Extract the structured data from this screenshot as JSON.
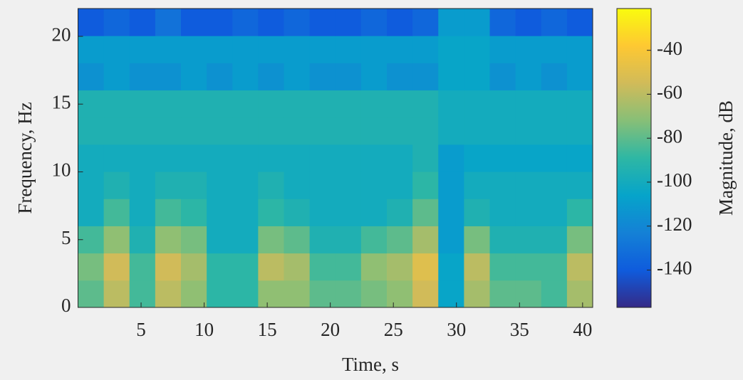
{
  "chart_data": {
    "type": "heatmap",
    "xlabel": "Time, s",
    "ylabel": "Frequency, Hz",
    "colorbar_label": "Magnitude, dB",
    "xlim": [
      0,
      40.8
    ],
    "ylim": [
      0,
      22.05
    ],
    "clim": [
      -157,
      -21
    ],
    "xticks": [
      5,
      10,
      15,
      20,
      25,
      30,
      35,
      40
    ],
    "yticks": [
      0,
      5,
      10,
      15,
      20
    ],
    "cticks": [
      -40,
      -60,
      -80,
      -100,
      -120,
      -140
    ],
    "colormap": [
      "#352a87",
      "#0f5cdd",
      "#1481d6",
      "#06a4ca",
      "#2eb7a4",
      "#87bf77",
      "#d1bb59",
      "#fec832",
      "#f9fb0e"
    ],
    "z": [
      [
        -80,
        -60,
        -85,
        -60,
        -70,
        -90,
        -90,
        -70,
        -70,
        -80,
        -80,
        -75,
        -70,
        -55,
        -105,
        -65,
        -80,
        -80,
        -85,
        -65
      ],
      [
        -75,
        -55,
        -85,
        -55,
        -65,
        -90,
        -90,
        -60,
        -65,
        -85,
        -85,
        -70,
        -65,
        -50,
        -105,
        -60,
        -85,
        -85,
        -85,
        -60
      ],
      [
        -85,
        -70,
        -95,
        -70,
        -75,
        -100,
        -100,
        -75,
        -80,
        -95,
        -95,
        -85,
        -80,
        -65,
        -110,
        -75,
        -95,
        -95,
        -95,
        -75
      ],
      [
        -100,
        -85,
        -100,
        -85,
        -90,
        -100,
        -100,
        -90,
        -95,
        -100,
        -100,
        -100,
        -95,
        -80,
        -110,
        -95,
        -100,
        -100,
        -100,
        -90
      ],
      [
        -100,
        -95,
        -100,
        -95,
        -95,
        -100,
        -100,
        -95,
        -100,
        -100,
        -100,
        -100,
        -100,
        -90,
        -110,
        -100,
        -100,
        -100,
        -100,
        -100
      ],
      [
        -100,
        -100,
        -100,
        -100,
        -100,
        -100,
        -100,
        -100,
        -100,
        -100,
        -100,
        -100,
        -100,
        -95,
        -110,
        -105,
        -105,
        -105,
        -105,
        -105
      ],
      [
        -95,
        -95,
        -95,
        -95,
        -95,
        -95,
        -95,
        -95,
        -95,
        -95,
        -95,
        -95,
        -95,
        -95,
        -100,
        -100,
        -100,
        -100,
        -100,
        -100
      ],
      [
        -95,
        -95,
        -95,
        -95,
        -95,
        -95,
        -95,
        -95,
        -95,
        -95,
        -95,
        -95,
        -95,
        -95,
        -100,
        -100,
        -100,
        -100,
        -100,
        -100
      ],
      [
        -115,
        -110,
        -115,
        -115,
        -110,
        -115,
        -110,
        -115,
        -110,
        -115,
        -115,
        -110,
        -115,
        -115,
        -105,
        -105,
        -115,
        -110,
        -115,
        -110
      ],
      [
        -110,
        -110,
        -110,
        -110,
        -110,
        -110,
        -110,
        -110,
        -110,
        -110,
        -110,
        -110,
        -110,
        -110,
        -105,
        -105,
        -110,
        -110,
        -110,
        -110
      ],
      [
        -140,
        -135,
        -140,
        -130,
        -140,
        -140,
        -135,
        -140,
        -135,
        -140,
        -140,
        -135,
        -140,
        -135,
        -110,
        -110,
        -135,
        -140,
        -135,
        -140
      ]
    ]
  }
}
